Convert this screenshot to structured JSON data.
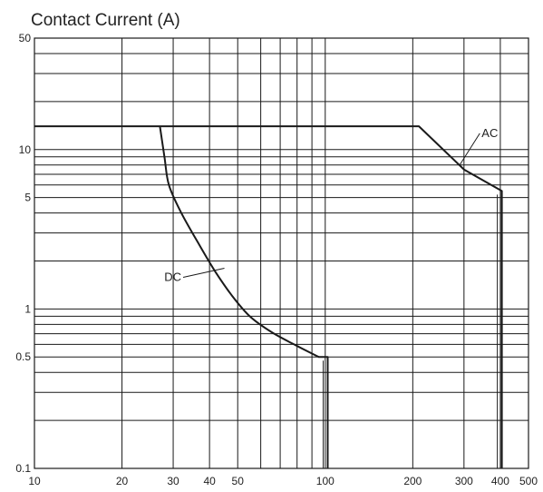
{
  "chart_data": {
    "type": "line",
    "title": "Contact Current (A)",
    "xscale": "log",
    "yscale": "log",
    "xlim": [
      10,
      500
    ],
    "ylim": [
      0.1,
      50
    ],
    "grid": true,
    "xticks": [
      10,
      20,
      30,
      40,
      50,
      100,
      200,
      300,
      400,
      500
    ],
    "xtick_labels": [
      "10",
      "20",
      "30",
      "40",
      "50",
      "100",
      "200",
      "300",
      "400",
      "500"
    ],
    "yticks": [
      0.1,
      0.5,
      1,
      5,
      10,
      50
    ],
    "ytick_labels": [
      "0.1",
      "0.5",
      "1",
      "5",
      "10",
      "50"
    ],
    "x_grid": [
      10,
      20,
      30,
      40,
      50,
      60,
      70,
      80,
      90,
      100,
      200,
      300,
      400,
      500
    ],
    "y_grid": [
      0.1,
      0.2,
      0.3,
      0.4,
      0.5,
      0.6,
      0.7,
      0.8,
      0.9,
      1,
      2,
      3,
      4,
      5,
      6,
      7,
      8,
      9,
      10,
      20,
      30,
      40,
      50
    ],
    "series": [
      {
        "name": "DC",
        "points": [
          [
            27,
            14
          ],
          [
            28,
            9
          ],
          [
            29,
            6
          ],
          [
            32,
            4
          ],
          [
            37,
            2.5
          ],
          [
            42,
            1.7
          ],
          [
            48,
            1.2
          ],
          [
            55,
            0.9
          ],
          [
            65,
            0.72
          ],
          [
            78,
            0.6
          ],
          [
            95,
            0.5
          ],
          [
            102,
            0.5
          ],
          [
            102,
            0.1
          ]
        ],
        "label_at": [
          32,
          1.5
        ],
        "label_anchor": [
          45,
          1.8
        ]
      },
      {
        "name": "AC",
        "points": [
          [
            10,
            14
          ],
          [
            210,
            14
          ],
          [
            300,
            7.5
          ],
          [
            405,
            5.5
          ],
          [
            405,
            0.1
          ]
        ],
        "label_at": [
          345,
          12
        ],
        "label_anchor": [
          290,
          8
        ]
      }
    ]
  }
}
